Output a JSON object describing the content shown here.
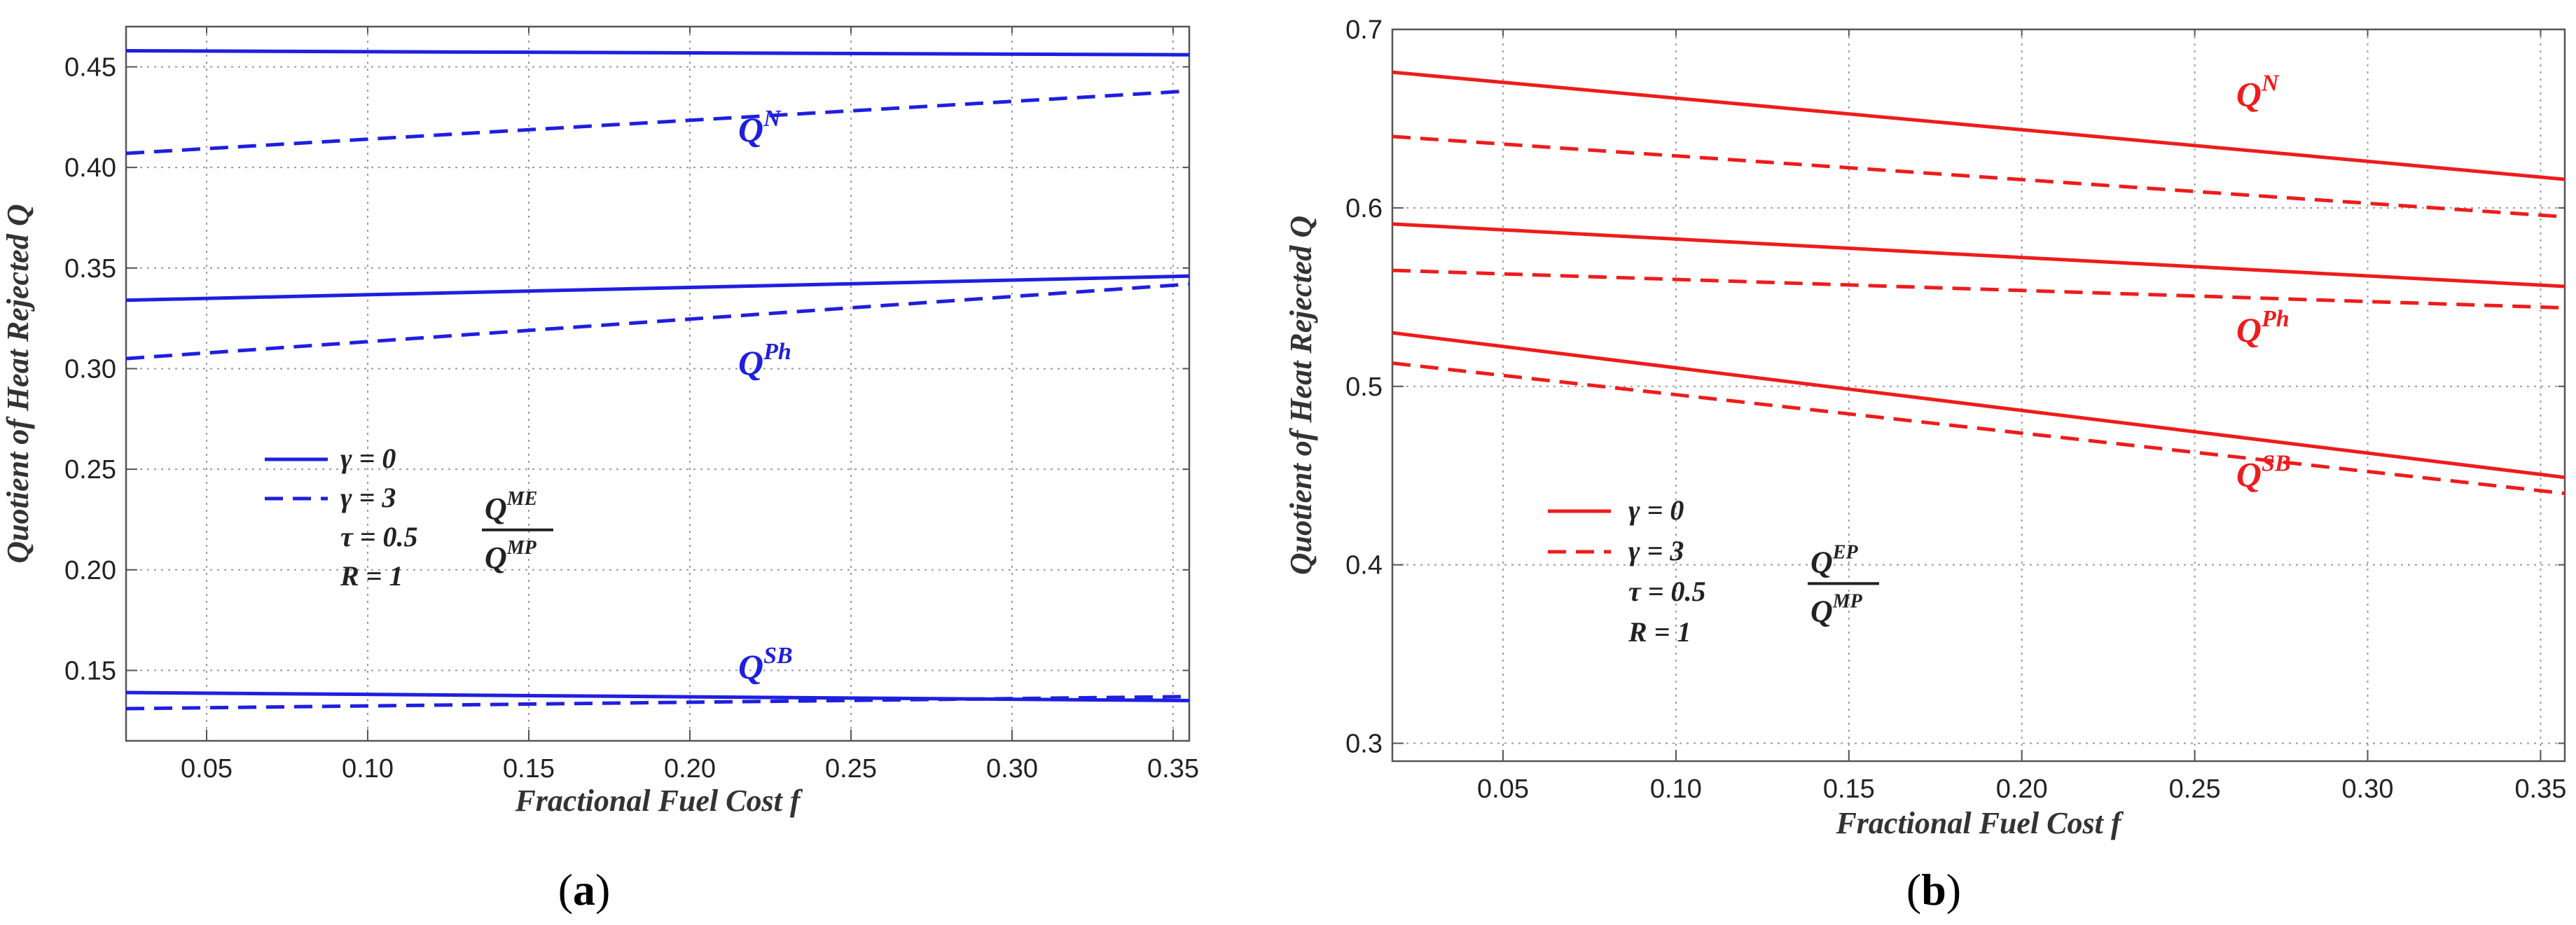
{
  "chart_data": [
    {
      "type": "line",
      "panel_label": "a",
      "xlabel": "Fractional Fuel Cost f",
      "ylabel": "Quotient of Heat Rejected Q",
      "xlim": [
        0.025,
        0.355
      ],
      "ylim": [
        0.115,
        0.47
      ],
      "xticks": [
        "0.05",
        "0.10",
        "0.15",
        "0.20",
        "0.25",
        "0.30",
        "0.35"
      ],
      "yticks": [
        "0.15",
        "0.20",
        "0.25",
        "0.30",
        "0.35",
        "0.40",
        "0.45"
      ],
      "grid": true,
      "color": "#1f1fe0",
      "series": [
        {
          "name": "Q^N (γ = 0)",
          "style": "solid",
          "x": [
            0.025,
            0.355
          ],
          "y": [
            0.458,
            0.456
          ]
        },
        {
          "name": "Q^N (γ = 3)",
          "style": "dashed",
          "x": [
            0.025,
            0.355
          ],
          "y": [
            0.407,
            0.438
          ]
        },
        {
          "name": "Q^Ph (γ = 0)",
          "style": "solid",
          "x": [
            0.025,
            0.355
          ],
          "y": [
            0.334,
            0.346
          ]
        },
        {
          "name": "Q^Ph (γ = 3)",
          "style": "dashed",
          "x": [
            0.025,
            0.355
          ],
          "y": [
            0.305,
            0.342
          ]
        },
        {
          "name": "Q^SB (γ = 0)",
          "style": "solid",
          "x": [
            0.025,
            0.355
          ],
          "y": [
            0.139,
            0.135
          ]
        },
        {
          "name": "Q^SB (γ = 3)",
          "style": "dashed",
          "x": [
            0.025,
            0.355
          ],
          "y": [
            0.131,
            0.137
          ]
        }
      ],
      "annotations": [
        {
          "base": "Q",
          "sup": "N",
          "x": 0.215,
          "y": 0.413
        },
        {
          "base": "Q",
          "sup": "Ph",
          "x": 0.215,
          "y": 0.297
        },
        {
          "base": "Q",
          "sup": "SB",
          "x": 0.215,
          "y": 0.146
        }
      ],
      "legend": {
        "placement": "lower-left",
        "solid_label": "γ = 0",
        "dashed_label": "γ = 3",
        "tau_label": "τ = 0.5",
        "r_label": "R = 1",
        "ratio_numerator_base": "Q",
        "ratio_numerator_sup": "ME",
        "ratio_denominator_base": "Q",
        "ratio_denominator_sup": "MP"
      }
    },
    {
      "type": "line",
      "panel_label": "b",
      "xlabel": "Fractional Fuel Cost f",
      "ylabel": "Quotient of Heat Rejected Q",
      "xlim": [
        0.018,
        0.357
      ],
      "ylim": [
        0.29,
        0.7
      ],
      "xticks": [
        "0.05",
        "0.10",
        "0.15",
        "0.20",
        "0.25",
        "0.30",
        "0.35"
      ],
      "yticks": [
        "0.3",
        "0.4",
        "0.5",
        "0.6",
        "0.7"
      ],
      "grid": true,
      "color": "#ee1c1c",
      "series": [
        {
          "name": "Q^N (γ = 0)",
          "style": "solid",
          "x": [
            0.018,
            0.357
          ],
          "y": [
            0.676,
            0.616
          ]
        },
        {
          "name": "Q^N (γ = 3)",
          "style": "dashed",
          "x": [
            0.018,
            0.357
          ],
          "y": [
            0.64,
            0.595
          ]
        },
        {
          "name": "Q^Ph (γ = 0)",
          "style": "solid",
          "x": [
            0.018,
            0.357
          ],
          "y": [
            0.591,
            0.556
          ]
        },
        {
          "name": "Q^Ph (γ = 3)",
          "style": "dashed",
          "x": [
            0.018,
            0.357
          ],
          "y": [
            0.565,
            0.544
          ]
        },
        {
          "name": "Q^SB (γ = 0)",
          "style": "solid",
          "x": [
            0.018,
            0.357
          ],
          "y": [
            0.53,
            0.449
          ]
        },
        {
          "name": "Q^SB (γ = 3)",
          "style": "dashed",
          "x": [
            0.018,
            0.357
          ],
          "y": [
            0.513,
            0.44
          ]
        }
      ],
      "annotations": [
        {
          "base": "Q",
          "sup": "N",
          "x": 0.262,
          "y": 0.657
        },
        {
          "base": "Q",
          "sup": "Ph",
          "x": 0.262,
          "y": 0.525
        },
        {
          "base": "Q",
          "sup": "SB",
          "x": 0.262,
          "y": 0.444
        }
      ],
      "legend": {
        "placement": "lower-left",
        "solid_label": "γ = 0",
        "dashed_label": "γ = 3",
        "tau_label": "τ = 0.5",
        "r_label": "R = 1",
        "ratio_numerator_base": "Q",
        "ratio_numerator_sup": "EP",
        "ratio_denominator_base": "Q",
        "ratio_denominator_sup": "MP"
      }
    }
  ]
}
